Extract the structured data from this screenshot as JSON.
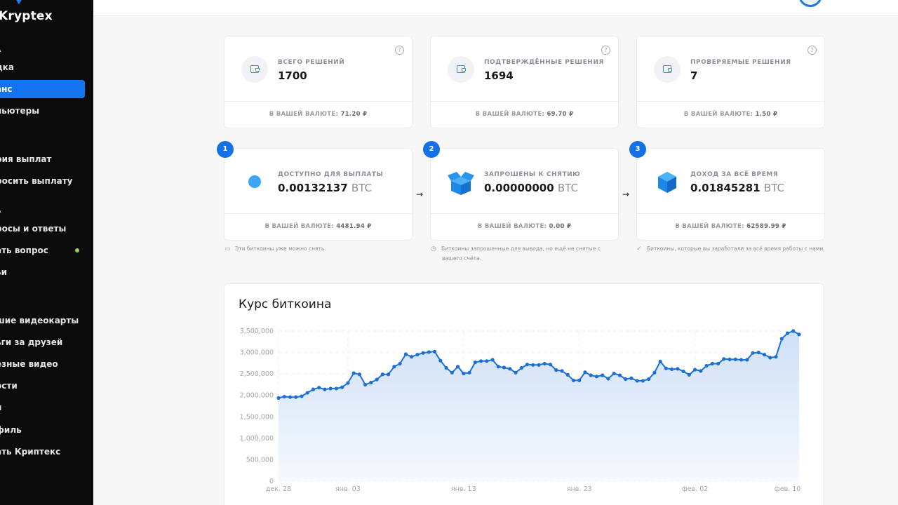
{
  "app": {
    "name": "Kryptex"
  },
  "sidebar": {
    "logo": "Kryptex",
    "sections": [
      {
        "label": "A",
        "y": 68
      },
      {
        "label": "A",
        "y": 297
      }
    ],
    "items": [
      {
        "label": "дка",
        "y": 83,
        "active": false
      },
      {
        "label": "анс",
        "y": 114,
        "active": true
      },
      {
        "label": "пьютеры",
        "y": 145,
        "active": false
      },
      {
        "label": "рия выплат",
        "y": 214,
        "active": false
      },
      {
        "label": "росить выплату",
        "y": 245,
        "active": false
      },
      {
        "label": "росы и ответы",
        "y": 313,
        "active": false
      },
      {
        "label": "ать вопрос",
        "y": 344,
        "active": false,
        "dot": true
      },
      {
        "label": "ьи",
        "y": 375,
        "active": false
      },
      {
        "label": "шие видеокарты",
        "y": 444,
        "active": false
      },
      {
        "label": "ьги за друзей",
        "y": 475,
        "active": false
      },
      {
        "label": "езные видео",
        "y": 506,
        "active": false
      },
      {
        "label": "ости",
        "y": 537,
        "active": false
      },
      {
        "label": "и",
        "y": 568,
        "active": false
      },
      {
        "label": "филь",
        "y": 600,
        "active": false
      },
      {
        "label": "ать Криптекс",
        "y": 631,
        "active": false
      }
    ]
  },
  "solutions": [
    {
      "label": "ВСЕГО РЕШЕНИЙ",
      "value": "1700",
      "currency_label": "В ВАШЕЙ ВАЛЮТЕ:",
      "currency_value": "71.20 ₽",
      "help": "?"
    },
    {
      "label": "ПОДТВЕРЖДЁННЫЕ РЕШЕНИЯ",
      "value": "1694",
      "currency_label": "В ВАШЕЙ ВАЛЮТЕ:",
      "currency_value": "69.70 ₽",
      "help": "?"
    },
    {
      "label": "ПРОВЕРЯЕМЫЕ РЕШЕНИЯ",
      "value": "7",
      "currency_label": "В ВАШЕЙ ВАЛЮТЕ:",
      "currency_value": "1.50 ₽",
      "help": "?"
    }
  ],
  "balances": [
    {
      "step": "1",
      "label": "ДОСТУПНО ДЛЯ ВЫПЛАТЫ",
      "amount": "0.00132137",
      "unit": "BTC",
      "currency_label": "В ВАШЕЙ ВАЛЮТЕ:",
      "currency_value": "4481.94 ₽",
      "note": "Эти биткоины уже можно снять.",
      "icon": "wallet-icon"
    },
    {
      "step": "2",
      "label": "ЗАПРОШЕНЫ К СНЯТИЮ",
      "amount": "0.00000000",
      "unit": "BTC",
      "currency_label": "В ВАШЕЙ ВАЛЮТЕ:",
      "currency_value": "0.00 ₽",
      "note_line1": "Биткоины запрошенные для вывода, но ещё не снятые с",
      "note_line2": "вашего счёта.",
      "icon": "stopwatch-icon"
    },
    {
      "step": "3",
      "label": "ДОХОД ЗА ВСЁ ВРЕМЯ",
      "amount": "0.01845281",
      "unit": "BTC",
      "currency_label": "В ВАШЕЙ ВАЛЮТЕ:",
      "currency_value": "62589.99 ₽",
      "note": "Биткоины, которые вы заработали за всё время работы с нами.",
      "icon": "checkmark-icon"
    }
  ],
  "arrows": [
    "→",
    "→"
  ],
  "colors": {
    "accent": "#1470e6",
    "sidebar_bg": "#0b0b0c",
    "line": "#1b6fd6",
    "fill": "#dbe8f8",
    "online_dot": "#8fd14f"
  },
  "chart_data": {
    "type": "area",
    "title": "Курс биткоина",
    "xlabel": "",
    "ylabel": "",
    "ylim": [
      0,
      3500000
    ],
    "yticks": [
      0,
      500000,
      1000000,
      1500000,
      2000000,
      2500000,
      3000000,
      3500000
    ],
    "ytick_labels": [
      "0",
      "500,000",
      "1,000,000",
      "1,500,000",
      "2,000,000",
      "2,500,000",
      "3,000,000",
      "3,500,000"
    ],
    "xtick_labels": [
      "дек. 28",
      "янв. 03",
      "янв. 13",
      "янв. 23",
      "фев. 02",
      "фев. 10"
    ],
    "xtick_index": [
      0,
      12,
      32,
      52,
      72,
      88
    ],
    "grid": true,
    "values": [
      1940000,
      1970000,
      1960000,
      1960000,
      1980000,
      2060000,
      2140000,
      2180000,
      2140000,
      2160000,
      2160000,
      2190000,
      2290000,
      2520000,
      2490000,
      2250000,
      2300000,
      2370000,
      2490000,
      2490000,
      2670000,
      2740000,
      2960000,
      2900000,
      2950000,
      2990000,
      3010000,
      3020000,
      2810000,
      2640000,
      2530000,
      2670000,
      2510000,
      2530000,
      2770000,
      2800000,
      2800000,
      2830000,
      2670000,
      2650000,
      2620000,
      2530000,
      2640000,
      2720000,
      2710000,
      2710000,
      2740000,
      2720000,
      2590000,
      2570000,
      2480000,
      2350000,
      2350000,
      2540000,
      2470000,
      2440000,
      2470000,
      2390000,
      2510000,
      2470000,
      2380000,
      2400000,
      2340000,
      2340000,
      2380000,
      2530000,
      2790000,
      2630000,
      2610000,
      2620000,
      2560000,
      2480000,
      2600000,
      2570000,
      2690000,
      2740000,
      2740000,
      2850000,
      2840000,
      2840000,
      2830000,
      2830000,
      2990000,
      3000000,
      2950000,
      2880000,
      2900000,
      3320000,
      3450000,
      3500000,
      3420000
    ]
  }
}
